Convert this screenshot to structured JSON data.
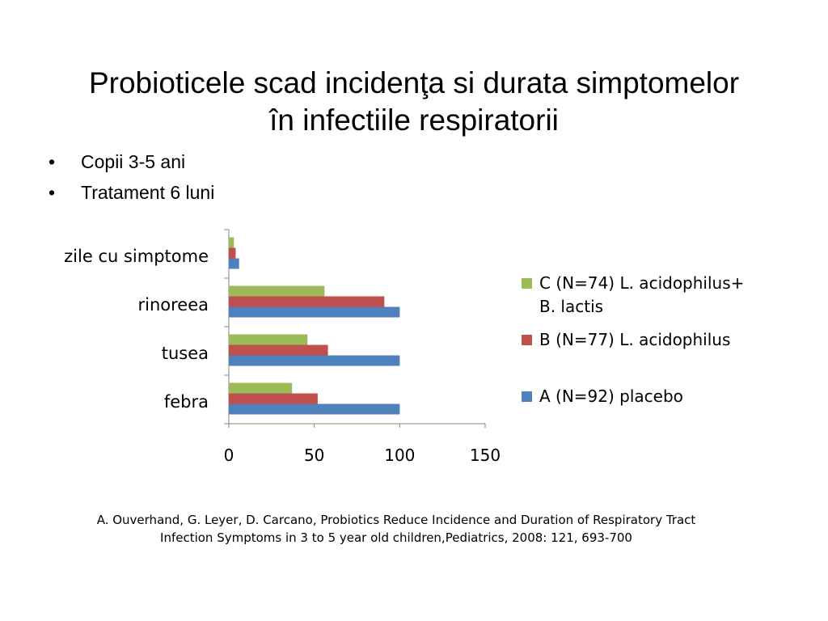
{
  "slide": {
    "title_line1": "Probioticele scad incidenţa si durata simptomelor",
    "title_line2": "în infectiile respiratorii",
    "bullets": [
      "Copii 3-5 ani",
      "Tratament 6 luni"
    ],
    "bullet_glyph": "•",
    "citation_line1": "A. Ouverhand, G. Leyer, D. Carcano, Probiotics Reduce Incidence and Duration of Respiratory Tract",
    "citation_line2": "Infection Symptoms in 3 to 5 year old children,Pediatrics, 2008: 121, 693-700"
  },
  "chart_data": {
    "type": "bar",
    "orientation": "horizontal",
    "categories": [
      "zile cu simptome",
      "rinoreea",
      "tusea",
      "febra"
    ],
    "series": [
      {
        "name": "C (N=74) L. acidophilus+ B. lactis",
        "legend_lines": [
          "C (N=74) L. acidophilus+",
          "B. lactis"
        ],
        "color": "#9bbb59",
        "values": [
          3,
          56,
          46,
          37
        ]
      },
      {
        "name": "B (N=77) L. acidophilus",
        "legend_lines": [
          "B (N=77) L. acidophilus"
        ],
        "color": "#c0504d",
        "values": [
          4,
          91,
          58,
          52
        ]
      },
      {
        "name": "A (N=92) placebo",
        "legend_lines": [
          "A (N=92) placebo"
        ],
        "color": "#4f81bd",
        "values": [
          6,
          100,
          100,
          100
        ]
      }
    ],
    "xlim": [
      0,
      150
    ],
    "xticks": [
      0,
      50,
      100,
      150
    ],
    "grid": false,
    "legend_position": "right"
  }
}
